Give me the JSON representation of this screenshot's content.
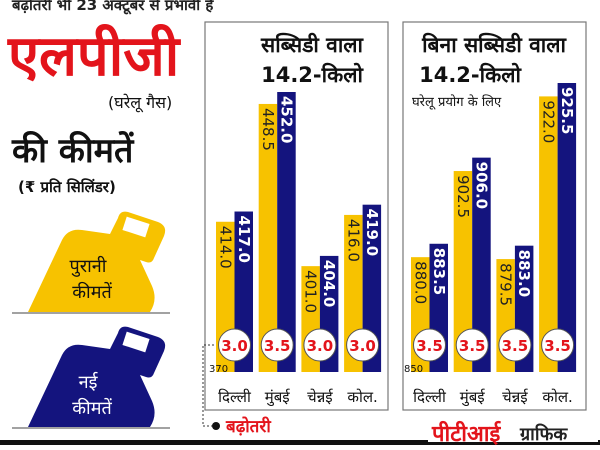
{
  "header": {
    "top_note": "बढ़ोतरी भी 23 अक्टूबर से प्रभावी है",
    "title": "एलपीजी",
    "subtitle": "(घरेलू गैस)",
    "title2": "की कीमतें",
    "unit": "(₹ प्रति सिलिंडर)"
  },
  "legend": {
    "old": {
      "line1": "पुरानी",
      "line2": "कीमतें",
      "icon": "gas-cylinder-icon"
    },
    "new": {
      "line1": "नई",
      "line2": "कीमतें",
      "icon": "gas-cylinder-icon"
    },
    "increase": "बढ़ोतरी"
  },
  "footer": {
    "brand": "पीटीआई",
    "brand_suffix": "ग्राफिक"
  },
  "colors": {
    "old": "#f7c200",
    "new": "#14147e",
    "accent": "#e3141b"
  },
  "chart_data": [
    {
      "type": "bar",
      "title_line1": "सब्सिडी वाला",
      "title_line2": "14.2-किलो",
      "subtitle": "",
      "categories": [
        "दिल्ली",
        "मुंबई",
        "चेन्नई",
        "कोल."
      ],
      "baseline_label": "370",
      "ylim": [
        370,
        460
      ],
      "series": [
        {
          "name": "पुरानी कीमतें",
          "values": [
            414.0,
            448.5,
            401.0,
            416.0
          ],
          "labels": [
            "414.0",
            "448.5",
            "401.0",
            "416.0"
          ]
        },
        {
          "name": "नई कीमतें",
          "values": [
            417.0,
            452.0,
            404.0,
            419.0
          ],
          "labels": [
            "417.0",
            "452.0",
            "404.0",
            "419.0"
          ]
        }
      ],
      "increase": [
        "3.0",
        "3.5",
        "3.0",
        "3.0"
      ]
    },
    {
      "type": "bar",
      "title_line1": "बिना सब्सिडी वाला",
      "title_line2": "14.2-किलो",
      "subtitle": "घरेलू प्रयोग के लिए",
      "categories": [
        "दिल्ली",
        "मुंबई",
        "चेन्नई",
        "कोल."
      ],
      "baseline_label": "850",
      "ylim": [
        850,
        930
      ],
      "series": [
        {
          "name": "पुरानी कीमतें",
          "values": [
            880.0,
            902.5,
            879.5,
            922.0
          ],
          "labels": [
            "880.0",
            "902.5",
            "879.5",
            "922.0"
          ]
        },
        {
          "name": "नई कीमतें",
          "values": [
            883.5,
            906.0,
            883.0,
            925.5
          ],
          "labels": [
            "883.5",
            "906.0",
            "883.0",
            "925.5"
          ]
        }
      ],
      "increase": [
        "3.5",
        "3.5",
        "3.5",
        "3.5"
      ]
    }
  ]
}
